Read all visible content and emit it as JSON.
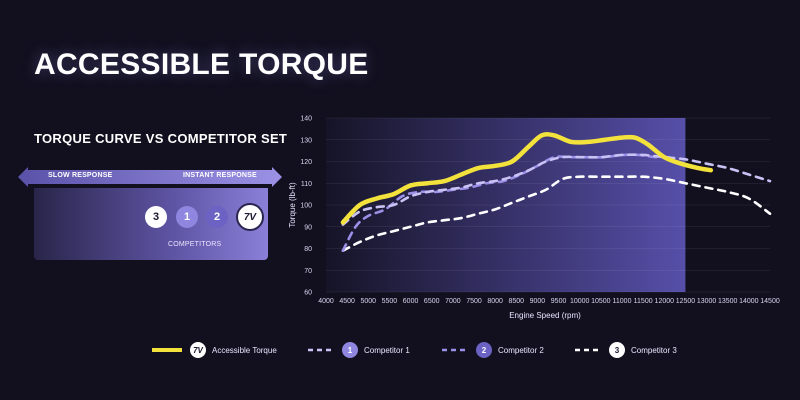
{
  "page": {
    "title": "ACCESSIBLE TORQUE",
    "subtitle": "TORQUE CURVE VS COMPETITOR SET"
  },
  "response_panel": {
    "left_label": "SLOW RESPONSE",
    "right_label": "INSTANT RESPONSE",
    "badges": [
      "3",
      "1",
      "2"
    ],
    "logo_text": "7V",
    "caption": "COMPETITORS"
  },
  "colors": {
    "background": "#12101f",
    "accent_yellow": "#f3e23c",
    "competitor_1": "#c9c3f5",
    "competitor_2": "#9a90e8",
    "competitor_3": "#ffffff",
    "highlight_band": "#5e56b8"
  },
  "chart_data": {
    "type": "line",
    "xlabel": "Engine Speed (rpm)",
    "ylabel": "Torque (lb-ft)",
    "xlim": [
      4000,
      14500
    ],
    "ylim": [
      60,
      140
    ],
    "x_ticks": [
      "4000",
      "4500",
      "5000",
      "5500",
      "6000",
      "6500",
      "7000",
      "7500",
      "8000",
      "8500",
      "9000",
      "9500",
      "10000",
      "10500",
      "11000",
      "11500",
      "12000",
      "12500",
      "13000",
      "13500",
      "14000",
      "14500"
    ],
    "y_ticks": [
      "60",
      "70",
      "80",
      "90",
      "100",
      "110",
      "120",
      "130",
      "140"
    ],
    "highlight_range": [
      4000,
      12500
    ],
    "series": [
      {
        "name": "Accessible Torque",
        "style": "solid",
        "x": [
          4400,
          4800,
          5200,
          5600,
          6000,
          6400,
          6800,
          7200,
          7600,
          8000,
          8400,
          8800,
          9100,
          9400,
          9800,
          10200,
          10600,
          11000,
          11300,
          11600,
          12000,
          12400,
          12800,
          13100
        ],
        "y": [
          92,
          100,
          103,
          105,
          109,
          110,
          111,
          114,
          117,
          118,
          120,
          127,
          132,
          132,
          129,
          129,
          130,
          131,
          131,
          128,
          122,
          119,
          117,
          116
        ]
      },
      {
        "name": "Competitor 1",
        "style": "dashed",
        "x": [
          4400,
          4800,
          5200,
          5600,
          6000,
          6400,
          6800,
          7200,
          7600,
          8000,
          8400,
          8800,
          9200,
          9600,
          10000,
          10500,
          11000,
          11500,
          12000,
          12500,
          13000,
          13500,
          14000,
          14500
        ],
        "y": [
          91,
          97,
          99,
          100,
          104,
          106,
          107,
          108,
          110,
          111,
          113,
          116,
          120,
          122,
          122,
          122,
          123,
          123,
          122,
          121,
          119,
          117,
          114,
          111
        ]
      },
      {
        "name": "Competitor 2",
        "style": "dashed",
        "x": [
          4400,
          4700,
          5000,
          5400,
          5800,
          6200,
          6600,
          7000,
          7400,
          7800,
          8200,
          8600,
          9000,
          9400,
          9800,
          10200,
          10600,
          11000,
          11400,
          11800,
          12200
        ],
        "y": [
          79,
          90,
          95,
          98,
          104,
          106,
          106,
          107,
          108,
          110,
          111,
          114,
          118,
          122,
          122,
          122,
          122,
          123,
          123,
          122,
          122
        ]
      },
      {
        "name": "Competitor 3",
        "style": "dashed",
        "x": [
          4400,
          4800,
          5200,
          5600,
          6000,
          6400,
          6800,
          7200,
          7600,
          8000,
          8400,
          8800,
          9200,
          9600,
          10000,
          10500,
          11000,
          11500,
          12000,
          12500,
          13000,
          13500,
          14000,
          14500
        ],
        "y": [
          79,
          83,
          86,
          88,
          90,
          92,
          93,
          94,
          96,
          98,
          101,
          104,
          107,
          112,
          113,
          113,
          113,
          113,
          112,
          110,
          108,
          106,
          103,
          96
        ]
      }
    ]
  },
  "legend": [
    {
      "label": "Accessible Torque",
      "badge": "7V"
    },
    {
      "label": "Competitor 1",
      "badge": "1"
    },
    {
      "label": "Competitor 2",
      "badge": "2"
    },
    {
      "label": "Competitor 3",
      "badge": "3"
    }
  ]
}
